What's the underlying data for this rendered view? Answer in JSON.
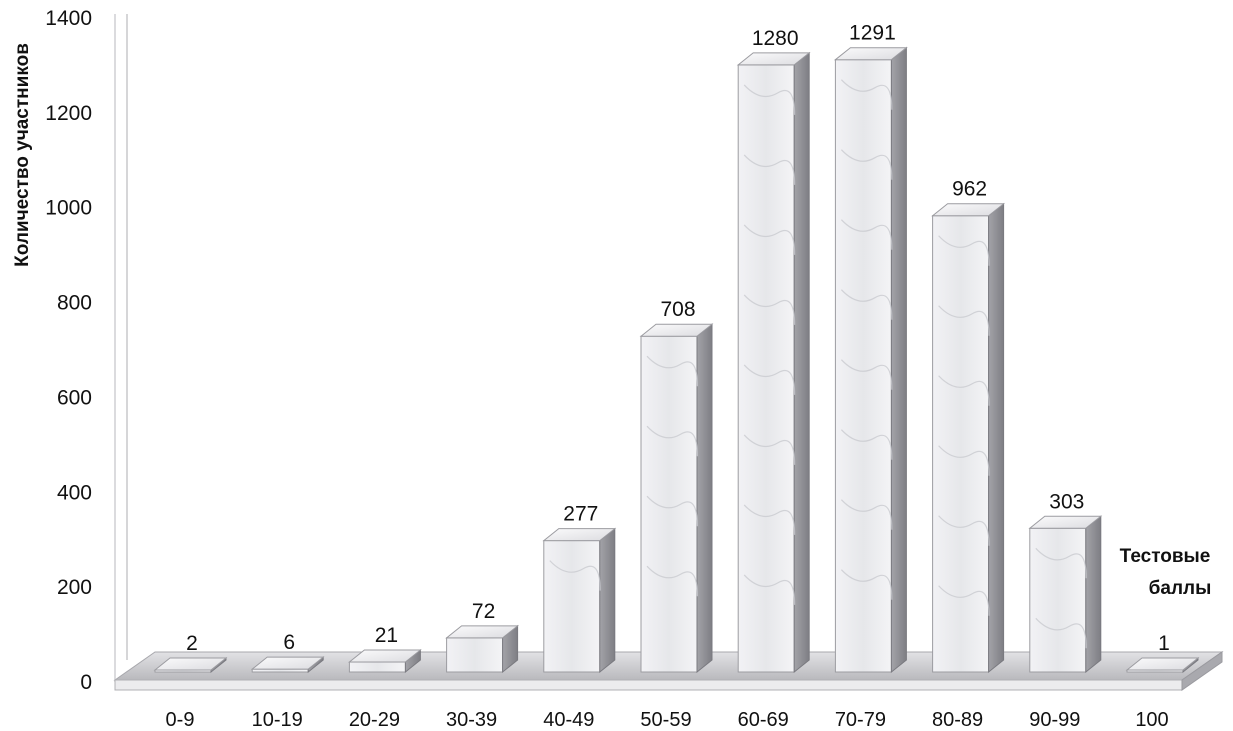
{
  "chart_data": {
    "type": "bar",
    "ylabel": "Количество участников",
    "xlabel_lines": [
      "Тестовые",
      "баллы"
    ],
    "categories": [
      "0-9",
      "10-19",
      "20-29",
      "30-39",
      "40-49",
      "50-59",
      "60-69",
      "70-79",
      "80-89",
      "90-99",
      "100"
    ],
    "values": [
      2,
      6,
      21,
      72,
      277,
      708,
      1280,
      1291,
      962,
      303,
      1
    ],
    "data_labels": [
      "2",
      "6",
      "21",
      "72",
      "277",
      "708",
      "1280",
      "1291",
      "962",
      "303",
      "1"
    ],
    "ylim": [
      0,
      1400
    ],
    "yticks": [
      "0",
      "200",
      "400",
      "600",
      "800",
      "1000",
      "1200",
      "1400"
    ],
    "grid": false,
    "legend": "none",
    "style": "3d-marble",
    "colors": {
      "bar_front": "#eeeff2",
      "bar_side": "#8d8d92",
      "bar_top": "#f7f7f8",
      "floor": "#d0d0d3"
    }
  }
}
